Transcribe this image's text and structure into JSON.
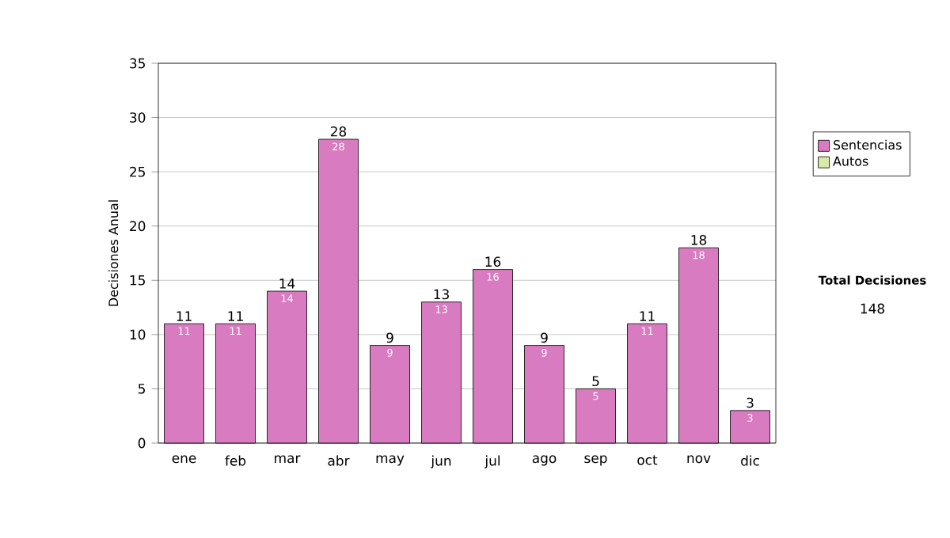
{
  "chart_data": {
    "type": "bar",
    "ylabel": "Decisiones Anual",
    "categories": [
      "ene",
      "feb",
      "mar",
      "abr",
      "may",
      "jun",
      "jul",
      "ago",
      "sep",
      "oct",
      "nov",
      "dic"
    ],
    "series": [
      {
        "name": "Sentencias",
        "color": "#d87bc0",
        "values": [
          11,
          11,
          14,
          28,
          9,
          13,
          16,
          9,
          5,
          11,
          18,
          3
        ]
      },
      {
        "name": "Autos",
        "color": "#d8eaa8",
        "values": [
          null,
          null,
          null,
          null,
          null,
          null,
          null,
          null,
          null,
          null,
          null,
          null
        ]
      }
    ],
    "totals": [
      "11",
      "11",
      "14",
      "28",
      "9",
      "13",
      "16",
      "9",
      "5",
      "11",
      "18",
      "3"
    ],
    "data_labels": true,
    "ylim": [
      0,
      35
    ],
    "yticks": [
      0,
      5,
      10,
      15,
      20,
      25,
      30,
      35
    ],
    "grid": "y",
    "legend": "right",
    "annotations": [
      "Total Decisiones",
      "148"
    ]
  }
}
